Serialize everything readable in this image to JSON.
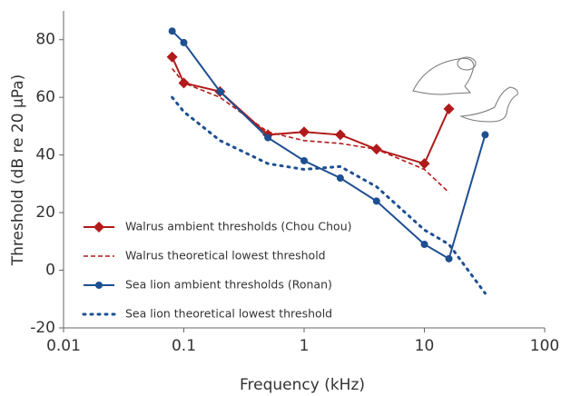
{
  "chart_data": {
    "type": "line",
    "x_label": "Frequency (kHz)",
    "y_label": "Threshold (dB re 20 µPa)",
    "xlim": [
      0.01,
      100
    ],
    "xticks": [
      0.01,
      0.1,
      1,
      10,
      100
    ],
    "x_scale": "log",
    "ylim": [
      -20,
      90
    ],
    "yticks": [
      -20,
      0,
      20,
      40,
      60,
      80
    ],
    "legend_position": "lower left",
    "series": [
      {
        "name": "Walrus ambient thresholds (Chou Chou)",
        "color": "#b11a1a",
        "line_style": "solid",
        "marker": "diamond",
        "x": [
          0.08,
          0.1,
          0.2,
          0.5,
          1,
          2,
          4,
          10,
          16
        ],
        "values": [
          74,
          65,
          62,
          47,
          48,
          47,
          42,
          37,
          56
        ]
      },
      {
        "name": "Walrus theoretical lowest threshold",
        "color": "#b11a1a",
        "line_style": "dashed",
        "marker": null,
        "x": [
          0.08,
          0.1,
          0.2,
          0.5,
          1,
          2,
          4,
          10,
          16
        ],
        "values": [
          70,
          65,
          60,
          48,
          45,
          44,
          42,
          35,
          27
        ]
      },
      {
        "name": "Sea lion ambient thresholds (Ronan)",
        "color": "#1d4f91",
        "line_style": "solid",
        "marker": "circle",
        "x": [
          0.08,
          0.1,
          0.2,
          0.5,
          1,
          2,
          4,
          10,
          16,
          32
        ],
        "values": [
          83,
          79,
          62,
          46,
          38,
          32,
          24,
          9,
          4,
          47
        ]
      },
      {
        "name": "Sea lion theoretical lowest threshold",
        "color": "#1d4f91",
        "line_style": "dotted",
        "marker": null,
        "x": [
          0.08,
          0.1,
          0.2,
          0.5,
          1,
          2,
          4,
          10,
          16,
          32
        ],
        "values": [
          60,
          55,
          45,
          37,
          35,
          36,
          29,
          14,
          9,
          -8
        ]
      }
    ]
  }
}
